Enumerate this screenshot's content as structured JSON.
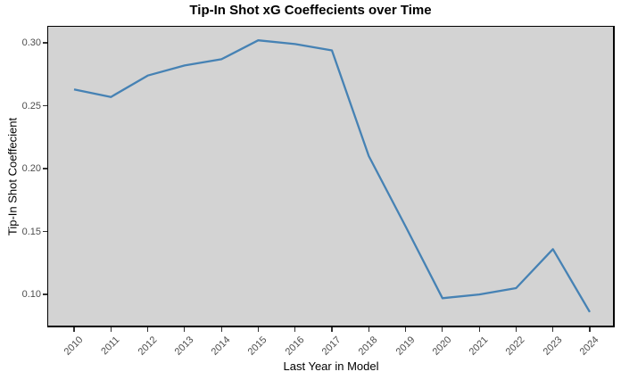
{
  "chart_data": {
    "type": "line",
    "title": "Tip-In Shot xG Coeffecients over Time",
    "xlabel": "Last Year in Model",
    "ylabel": "Tip-In Shot Coeffecient",
    "series_name": "Tip-In Shot xG Coefficient",
    "x": [
      2010,
      2011,
      2012,
      2013,
      2014,
      2015,
      2016,
      2017,
      2018,
      2019,
      2020,
      2021,
      2022,
      2023,
      2024
    ],
    "x_tick_labels": [
      "2010",
      "2011",
      "2012",
      "2013",
      "2014",
      "2015",
      "2016",
      "2017",
      "2018",
      "2019",
      "2020",
      "2021",
      "2022",
      "2023",
      "2024"
    ],
    "values": [
      0.263,
      0.257,
      0.274,
      0.282,
      0.287,
      0.302,
      0.299,
      0.294,
      0.21,
      0.154,
      0.097,
      0.1,
      0.105,
      0.136,
      0.086
    ],
    "y_ticks": [
      0.1,
      0.15,
      0.2,
      0.25,
      0.3
    ],
    "y_tick_labels": [
      "0.10",
      "0.15",
      "0.20",
      "0.25",
      "0.30"
    ],
    "xlim": [
      2009.273,
      2024.678
    ],
    "ylim": [
      0.0738,
      0.3135
    ],
    "grid": false,
    "legend": "none",
    "colors": {
      "line": "#4682B4",
      "panel_bg": "#D3D3D3",
      "panel_border": "#000000",
      "tick_mark": "#333333",
      "tick_label": "#4D4D4D",
      "text": "#000000",
      "background": "#FFFFFF"
    }
  }
}
